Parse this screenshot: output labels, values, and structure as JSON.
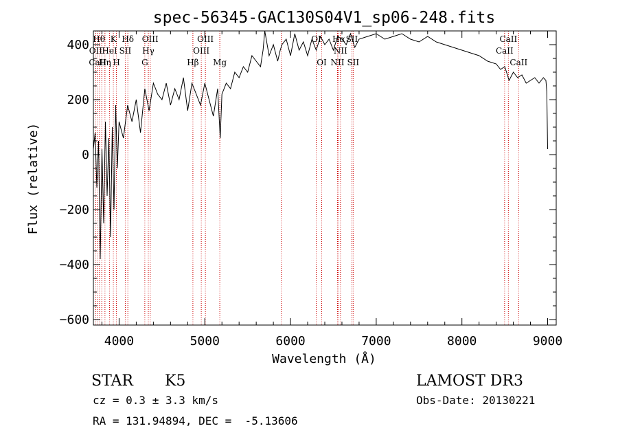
{
  "chart_data": {
    "type": "line",
    "title": "spec-56345-GAC130S04V1_sp06-248.fits",
    "xlabel": "Wavelength (Å)",
    "ylabel": "Flux (relative)",
    "xlim": [
      3700,
      9100
    ],
    "ylim": [
      -620,
      450
    ],
    "xticks": [
      4000,
      5000,
      6000,
      7000,
      8000,
      9000
    ],
    "yticks": [
      -600,
      -400,
      -200,
      0,
      200,
      400
    ],
    "series": [
      {
        "name": "flux",
        "x": [
          3700,
          3720,
          3740,
          3760,
          3780,
          3800,
          3820,
          3840,
          3860,
          3880,
          3900,
          3920,
          3940,
          3960,
          3980,
          4000,
          4050,
          4100,
          4150,
          4200,
          4250,
          4300,
          4350,
          4400,
          4450,
          4500,
          4550,
          4600,
          4650,
          4700,
          4750,
          4800,
          4850,
          4900,
          4950,
          5000,
          5050,
          5100,
          5150,
          5180,
          5200,
          5250,
          5300,
          5350,
          5400,
          5450,
          5500,
          5550,
          5600,
          5650,
          5680,
          5700,
          5750,
          5800,
          5850,
          5880,
          5900,
          5950,
          6000,
          6050,
          6100,
          6150,
          6200,
          6250,
          6300,
          6350,
          6400,
          6450,
          6500,
          6550,
          6600,
          6650,
          6700,
          6750,
          6800,
          6900,
          7000,
          7100,
          7200,
          7300,
          7400,
          7500,
          7600,
          7700,
          7800,
          7900,
          8000,
          8100,
          8200,
          8300,
          8400,
          8450,
          8500,
          8550,
          8600,
          8650,
          8700,
          8750,
          8800,
          8850,
          8900,
          8950,
          8980,
          8990,
          9000
        ],
        "values": [
          20,
          80,
          -120,
          50,
          -380,
          20,
          -250,
          120,
          -150,
          60,
          -300,
          100,
          -200,
          180,
          -50,
          120,
          60,
          180,
          120,
          200,
          80,
          240,
          160,
          260,
          220,
          200,
          260,
          180,
          240,
          200,
          280,
          160,
          260,
          220,
          180,
          260,
          200,
          140,
          240,
          60,
          220,
          260,
          240,
          300,
          280,
          320,
          300,
          360,
          340,
          320,
          380,
          450,
          360,
          400,
          340,
          380,
          400,
          420,
          360,
          440,
          380,
          410,
          360,
          420,
          380,
          430,
          400,
          420,
          380,
          430,
          420,
          400,
          440,
          390,
          420,
          430,
          440,
          420,
          430,
          440,
          420,
          410,
          430,
          410,
          400,
          390,
          380,
          370,
          360,
          340,
          330,
          310,
          320,
          270,
          300,
          280,
          290,
          260,
          270,
          280,
          260,
          280,
          270,
          230,
          20
        ]
      }
    ],
    "lines_red": [
      3727,
      3750,
      3771,
      3798,
      3835,
      3889,
      3933,
      3969,
      4072,
      4102,
      4300,
      4341,
      4363,
      4861,
      4959,
      5007,
      5175,
      5893,
      6300,
      6364,
      6548,
      6563,
      6583,
      6716,
      6731,
      8498,
      8542,
      8662
    ],
    "annotations": [
      {
        "text": "Hθ",
        "x": 3765,
        "row": 1
      },
      {
        "text": "K",
        "x": 3934,
        "row": 1
      },
      {
        "text": "Hδ",
        "x": 4102,
        "row": 1
      },
      {
        "text": "OIII",
        "x": 4363,
        "row": 1
      },
      {
        "text": "OIII",
        "x": 5007,
        "row": 1
      },
      {
        "text": "OI",
        "x": 6300,
        "row": 1
      },
      {
        "text": "Hα",
        "x": 6563,
        "row": 1
      },
      {
        "text": "SII",
        "x": 6716,
        "row": 1
      },
      {
        "text": "CaII",
        "x": 8542,
        "row": 1
      },
      {
        "text": "OII",
        "x": 3727,
        "row": 2
      },
      {
        "text": "HeI",
        "x": 3889,
        "row": 2
      },
      {
        "text": "SII",
        "x": 4072,
        "row": 2
      },
      {
        "text": "Hγ",
        "x": 4341,
        "row": 2
      },
      {
        "text": "OIII",
        "x": 4959,
        "row": 2
      },
      {
        "text": "NII",
        "x": 6583,
        "row": 2
      },
      {
        "text": "CaII",
        "x": 8498,
        "row": 2
      },
      {
        "text": "CaII",
        "x": 3750,
        "row": 3
      },
      {
        "text": "Hη",
        "x": 3835,
        "row": 3
      },
      {
        "text": "H",
        "x": 3969,
        "row": 3
      },
      {
        "text": "G",
        "x": 4300,
        "row": 3
      },
      {
        "text": "Hβ",
        "x": 4861,
        "row": 3
      },
      {
        "text": "Mg",
        "x": 5175,
        "row": 3
      },
      {
        "text": "OI",
        "x": 6364,
        "row": 3
      },
      {
        "text": "NII",
        "x": 6548,
        "row": 3
      },
      {
        "text": "SII",
        "x": 6731,
        "row": 3
      },
      {
        "text": "CaII",
        "x": 8662,
        "row": 3
      }
    ]
  },
  "info": {
    "object_class": "STAR",
    "subclass": "K5",
    "survey": "LAMOST DR3",
    "cz": "cz = 0.3 ± 3.3 km/s",
    "obs_date": "Obs-Date: 20130221",
    "radec": "RA = 131.94894, DEC =  -5.13606"
  }
}
